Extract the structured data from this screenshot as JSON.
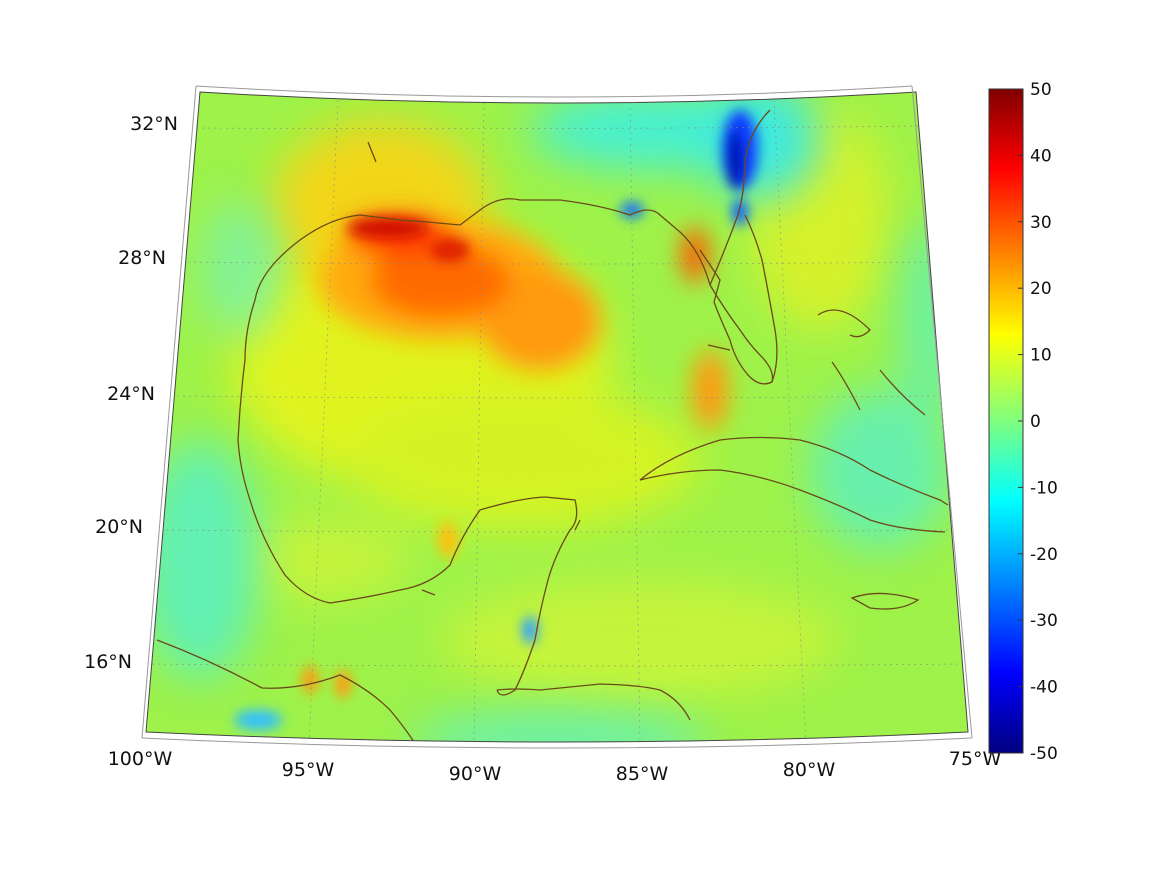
{
  "map": {
    "lon_labels": [
      "100°W",
      "95°W",
      "90°W",
      "85°W",
      "80°W",
      "75°W"
    ],
    "lat_labels": [
      "32°N",
      "28°N",
      "24°N",
      "20°N",
      "16°N"
    ],
    "projection": "conic",
    "grid": "dotted",
    "colormap": "jet",
    "coastline_color": "#6b4a1a"
  },
  "colorbar": {
    "ticks": [
      "50",
      "40",
      "30",
      "20",
      "10",
      "0",
      "-10",
      "-20",
      "-30",
      "-40",
      "-50"
    ],
    "range": [
      -50,
      50
    ]
  }
}
